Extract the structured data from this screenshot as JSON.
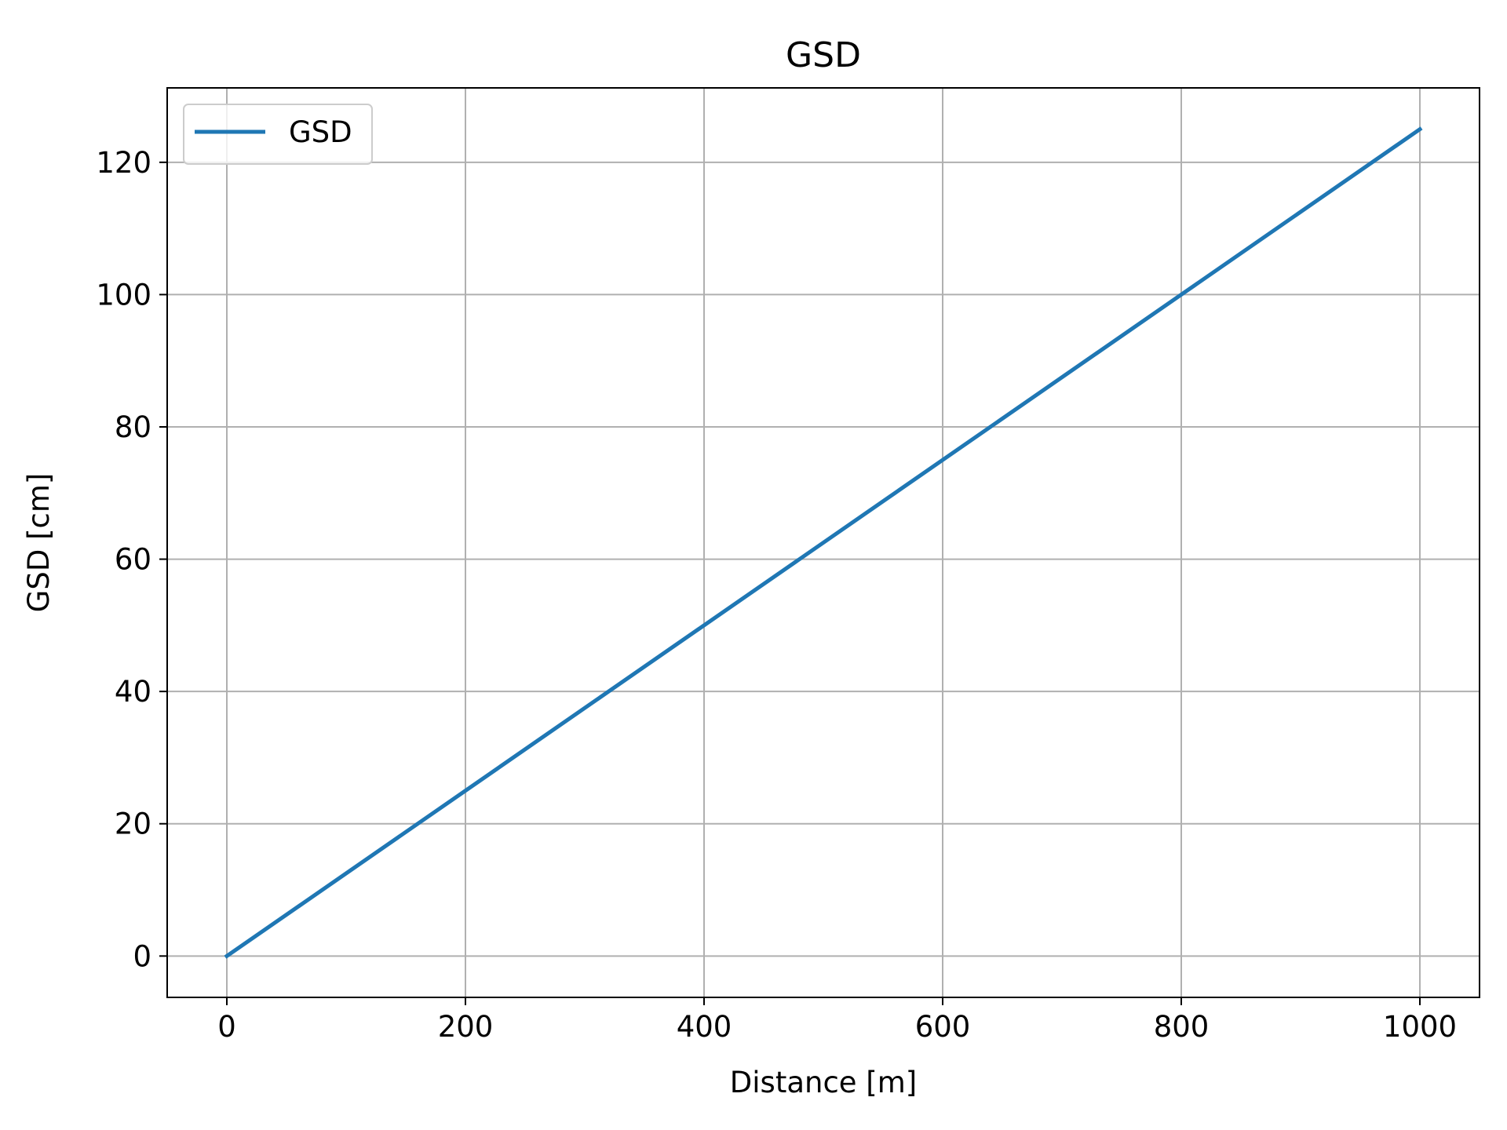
{
  "chart_data": {
    "type": "line",
    "title": "GSD",
    "xlabel": "Distance [m]",
    "ylabel": "GSD [cm]",
    "xlim": [
      -50,
      1050
    ],
    "ylim": [
      -6.25,
      131.25
    ],
    "xticks": [
      0,
      200,
      400,
      600,
      800,
      1000
    ],
    "yticks": [
      0,
      20,
      40,
      60,
      80,
      100,
      120
    ],
    "grid": true,
    "legend": "top-left",
    "series": [
      {
        "name": "GSD",
        "color": "#1f77b4",
        "x": [
          0,
          1000
        ],
        "y": [
          0,
          125
        ]
      }
    ]
  }
}
